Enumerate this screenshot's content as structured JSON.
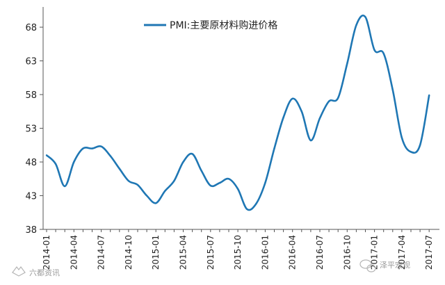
{
  "chart_data": {
    "type": "line",
    "title": "",
    "xlabel": "",
    "ylabel": "",
    "ylim": [
      38,
      71
    ],
    "y_ticks": [
      38,
      43,
      48,
      53,
      58,
      63,
      68
    ],
    "x_tick_labels": [
      "2014-01",
      "2014-04",
      "2014-07",
      "2014-10",
      "2015-01",
      "2015-04",
      "2015-07",
      "2015-10",
      "2016-01",
      "2016-04",
      "2016-07",
      "2016-10",
      "2017-01",
      "2017-04",
      "2017-07"
    ],
    "legend": {
      "placement": "top-center"
    },
    "grid": false,
    "series": [
      {
        "name": "PMI:主要原材料购进价格",
        "color": "#1F77B4",
        "x": [
          "2014-01",
          "2014-02",
          "2014-03",
          "2014-04",
          "2014-05",
          "2014-06",
          "2014-07",
          "2014-08",
          "2014-09",
          "2014-10",
          "2014-11",
          "2014-12",
          "2015-01",
          "2015-02",
          "2015-03",
          "2015-04",
          "2015-05",
          "2015-06",
          "2015-07",
          "2015-08",
          "2015-09",
          "2015-10",
          "2015-11",
          "2015-12",
          "2016-01",
          "2016-02",
          "2016-03",
          "2016-04",
          "2016-05",
          "2016-06",
          "2016-07",
          "2016-08",
          "2016-09",
          "2016-10",
          "2016-11",
          "2016-12",
          "2017-01",
          "2017-02",
          "2017-03",
          "2017-04",
          "2017-05",
          "2017-06",
          "2017-07"
        ],
        "values": [
          49.0,
          47.7,
          44.4,
          48.0,
          50.0,
          50.0,
          50.3,
          48.9,
          47.0,
          45.2,
          44.6,
          43.0,
          41.9,
          43.7,
          45.2,
          48.0,
          49.2,
          46.7,
          44.5,
          44.9,
          45.5,
          44.0,
          41.0,
          41.8,
          44.9,
          50.0,
          54.6,
          57.4,
          55.5,
          51.2,
          54.5,
          57.0,
          57.5,
          62.6,
          68.3,
          69.5,
          64.6,
          64.1,
          58.7,
          51.6,
          49.5,
          50.5,
          57.9
        ]
      }
    ]
  },
  "watermarks": {
    "left": "六都资讯",
    "right": "泽平宏观"
  },
  "icons": {
    "watermark_left": "fox-logo-icon",
    "watermark_right": "wechat-logo-icon"
  }
}
